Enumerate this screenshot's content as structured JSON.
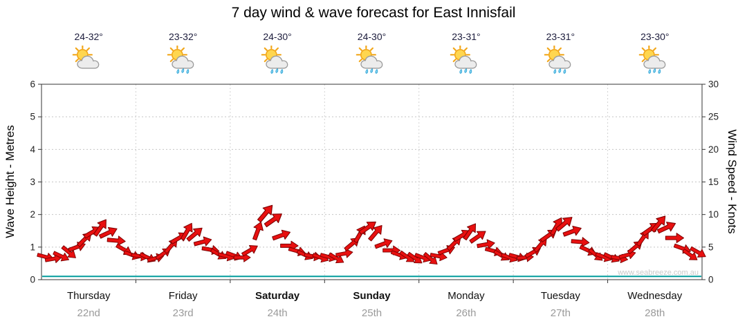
{
  "chart_data": {
    "type": "wind-arrows",
    "title": "7 day wind & wave forecast for East Innisfail",
    "watermark": "www.seabreeze.com.au",
    "left_axis": {
      "label": "Wave Height - Metres",
      "min": 0,
      "max": 6,
      "ticks": [
        0,
        1,
        2,
        3,
        4,
        5,
        6
      ]
    },
    "right_axis": {
      "label": "Wind Speed - Knots",
      "min": 0,
      "max": 30,
      "ticks": [
        0,
        5,
        10,
        15,
        20,
        25,
        30
      ]
    },
    "grid": true,
    "days": [
      {
        "name": "Thursday",
        "date": "22nd",
        "temp": "24-32°",
        "icon": "sun-cloud",
        "weekend": false
      },
      {
        "name": "Friday",
        "date": "23rd",
        "temp": "23-32°",
        "icon": "sun-cloud-rain",
        "weekend": false
      },
      {
        "name": "Saturday",
        "date": "24th",
        "temp": "24-30°",
        "icon": "sun-cloud-rain",
        "weekend": true
      },
      {
        "name": "Sunday",
        "date": "25th",
        "temp": "24-30°",
        "icon": "sun-cloud-rain",
        "weekend": true
      },
      {
        "name": "Monday",
        "date": "26th",
        "temp": "23-31°",
        "icon": "sun-cloud-rain",
        "weekend": false
      },
      {
        "name": "Tuesday",
        "date": "27th",
        "temp": "23-31°",
        "icon": "sun-cloud-rain",
        "weekend": false
      },
      {
        "name": "Wednesday",
        "date": "28th",
        "temp": "23-30°",
        "icon": "sun-cloud-rain",
        "weekend": false
      }
    ],
    "wind_arrows": {
      "per_day": 12,
      "color": "#e81010",
      "outline": "#7a0000",
      "knots": [
        [
          3.5,
          3.2,
          3.6,
          4.2,
          5.0,
          6.2,
          7.3,
          8.0,
          7.2,
          6.0,
          4.6,
          3.8
        ],
        [
          3.6,
          3.4,
          3.3,
          4.0,
          5.2,
          6.4,
          7.4,
          7.0,
          5.8,
          4.6,
          3.9,
          3.6
        ],
        [
          3.7,
          3.4,
          4.5,
          7.5,
          10.2,
          9.2,
          6.8,
          5.2,
          4.4,
          3.8,
          3.6,
          3.4
        ],
        [
          3.5,
          3.3,
          4.0,
          5.5,
          7.0,
          8.0,
          7.2,
          5.5,
          4.5,
          3.8,
          3.5,
          3.3
        ],
        [
          3.4,
          3.2,
          3.6,
          4.5,
          5.6,
          6.8,
          7.4,
          6.6,
          5.4,
          4.4,
          3.7,
          3.4
        ],
        [
          3.5,
          3.4,
          4.2,
          5.4,
          6.8,
          8.2,
          8.6,
          7.4,
          5.8,
          4.5,
          3.8,
          3.5
        ],
        [
          3.4,
          3.3,
          3.8,
          5.0,
          6.4,
          7.8,
          8.6,
          8.0,
          6.4,
          4.8,
          3.8,
          4.2
        ]
      ],
      "dir_deg": [
        [
          15,
          -10,
          25,
          40,
          -20,
          -45,
          -30,
          -55,
          -25,
          5,
          30,
          20
        ],
        [
          10,
          25,
          -15,
          -35,
          -50,
          -30,
          -60,
          -40,
          -15,
          10,
          30,
          15
        ],
        [
          20,
          0,
          -30,
          -70,
          -50,
          -35,
          -20,
          0,
          15,
          25,
          10,
          20
        ],
        [
          15,
          30,
          -10,
          -40,
          -60,
          -35,
          -50,
          -20,
          0,
          20,
          35,
          35
        ],
        [
          20,
          40,
          10,
          -20,
          -45,
          -30,
          -55,
          -35,
          -10,
          15,
          30,
          20
        ],
        [
          15,
          -5,
          -30,
          -50,
          -35,
          -60,
          -40,
          -20,
          5,
          25,
          40,
          20
        ],
        [
          25,
          10,
          -15,
          -40,
          -55,
          -35,
          -50,
          -25,
          0,
          20,
          35,
          30
        ]
      ]
    },
    "wave_height_line": {
      "value_m": 0.1,
      "color": "#009c9c"
    }
  }
}
